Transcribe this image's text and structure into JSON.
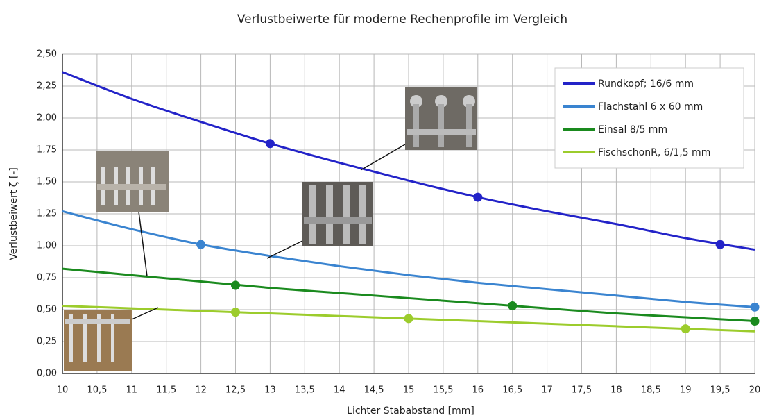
{
  "chart_data": {
    "type": "line",
    "title": "Verlustbeiwerte für moderne Rechenprofile im Vergleich",
    "x_label": "Lichter Stababstand [mm]",
    "y_label": "Verlustbeiwert ζ [-]",
    "x": [
      10,
      11,
      12,
      13,
      14,
      15,
      16,
      17,
      18,
      19,
      20
    ],
    "series": [
      {
        "name": "Rundkopf; 16/6 mm",
        "color": "#2323c8",
        "values": [
          2.36,
          2.15,
          1.97,
          1.8,
          1.65,
          1.51,
          1.38,
          1.27,
          1.17,
          1.06,
          0.97
        ],
        "points": {
          "x": [
            13,
            16,
            19.5
          ],
          "values": [
            1.8,
            1.38,
            1.01
          ]
        }
      },
      {
        "name": "Flachstahl 6 x 60 mm",
        "color": "#3a84d0",
        "values": [
          1.27,
          1.13,
          1.01,
          0.92,
          0.84,
          0.77,
          0.71,
          0.66,
          0.61,
          0.56,
          0.52
        ],
        "points": {
          "x": [
            12,
            20
          ],
          "values": [
            1.01,
            0.52
          ]
        }
      },
      {
        "name": "Einsal 8/5 mm",
        "color": "#1a8a1e",
        "values": [
          0.82,
          0.77,
          0.72,
          0.67,
          0.63,
          0.59,
          0.55,
          0.51,
          0.47,
          0.44,
          0.41
        ],
        "points": {
          "x": [
            12.5,
            16.5,
            20
          ],
          "values": [
            0.69,
            0.53,
            0.41
          ]
        }
      },
      {
        "name": "FischschonR, 6/1,5 mm",
        "color": "#9ccc2c",
        "values": [
          0.53,
          0.51,
          0.49,
          0.47,
          0.45,
          0.43,
          0.41,
          0.39,
          0.37,
          0.35,
          0.33
        ],
        "points": {
          "x": [
            12.5,
            15,
            19
          ],
          "values": [
            0.48,
            0.43,
            0.35
          ]
        }
      }
    ],
    "xlim": [
      10,
      20
    ],
    "ylim": [
      0,
      2.5
    ],
    "xticks": [
      10,
      {
        "value": 10.5,
        "label": "10,5"
      },
      11,
      {
        "value": 11.5,
        "label": "11,5"
      },
      12,
      {
        "value": 12.5,
        "label": "12,5"
      },
      13,
      {
        "value": 13.5,
        "label": "13,5"
      },
      14,
      {
        "value": 14.5,
        "label": "14,5"
      },
      15,
      {
        "value": 15.5,
        "label": "15,5"
      },
      16,
      {
        "value": 16.5,
        "label": "16,5"
      },
      17,
      {
        "value": 17.5,
        "label": "17,5"
      },
      18,
      {
        "value": 18.5,
        "label": "18,5"
      },
      19,
      {
        "value": 19.5,
        "label": "19,5"
      },
      20
    ],
    "yticks": [
      {
        "value": 0,
        "label": "0,00"
      },
      {
        "value": 0.25,
        "label": "0,25"
      },
      {
        "value": 0.5,
        "label": "0,50"
      },
      {
        "value": 0.75,
        "label": "0,75"
      },
      {
        "value": 1,
        "label": "1,00"
      },
      {
        "value": 1.25,
        "label": "1,25"
      },
      {
        "value": 1.5,
        "label": "1,50"
      },
      {
        "value": 1.75,
        "label": "1,75"
      },
      {
        "value": 2,
        "label": "2,00"
      },
      {
        "value": 2.25,
        "label": "2,25"
      },
      {
        "value": 2.5,
        "label": "2,50"
      }
    ],
    "grid": true,
    "legend": "upper right"
  }
}
